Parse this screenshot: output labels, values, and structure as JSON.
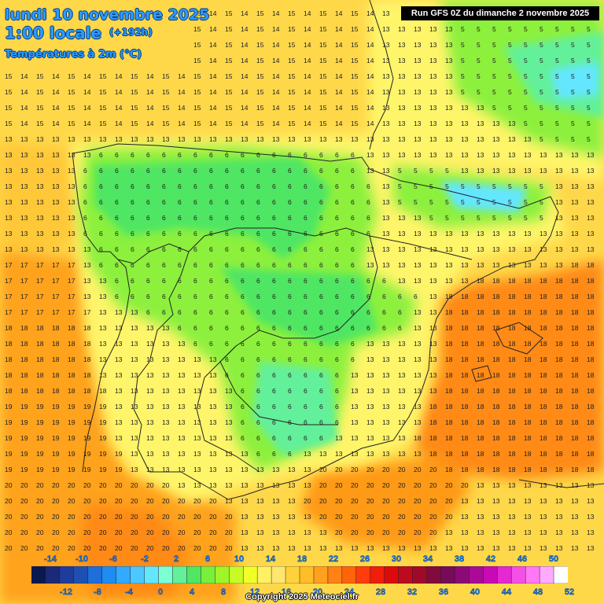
{
  "header": {
    "title_date": "lundi 10 novembre 2025",
    "title_time": "1:00 locale",
    "title_offset": "(+192h)",
    "subtitle": "Températures à 2m (°C)",
    "run_info": "Run GFS 0Z du dimanche 2 novembre 2025"
  },
  "footer": {
    "copyright": "Copyright 2025 Meteociel.fr"
  },
  "legend": {
    "colors": [
      "#0a1850",
      "#1a2a78",
      "#1e3c9a",
      "#1e50b4",
      "#1e6edc",
      "#1e8cf0",
      "#32aaff",
      "#4cc8ff",
      "#64e6ff",
      "#7cffd2",
      "#64f09a",
      "#50e664",
      "#78f03c",
      "#a0f528",
      "#c8fa28",
      "#f0ff28",
      "#fff064",
      "#ffe66e",
      "#ffd23c",
      "#ffbe28",
      "#ffa01e",
      "#ff8214",
      "#ff640a",
      "#ff3c0a",
      "#f01e0a",
      "#dc0a0a",
      "#be0a1e",
      "#a00a28",
      "#820a3c",
      "#780a5a",
      "#8c0a78",
      "#aa0a96",
      "#c80ab4",
      "#e628d2",
      "#f550e6",
      "#ff78f5",
      "#ffaaff",
      "#ffffff"
    ],
    "top_labels": [
      "-14",
      "-10",
      "-6",
      "-2",
      "2",
      "6",
      "10",
      "14",
      "18",
      "22",
      "26",
      "30",
      "34",
      "38",
      "42",
      "46",
      "50"
    ],
    "bottom_labels": [
      "-12",
      "-8",
      "-4",
      "0",
      "4",
      "8",
      "12",
      "16",
      "20",
      "24",
      "28",
      "32",
      "36",
      "40",
      "44",
      "48",
      "52"
    ]
  }
}
